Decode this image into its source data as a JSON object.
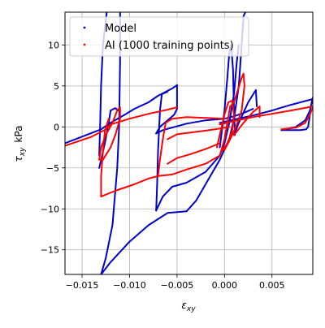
{
  "chart_data": {
    "type": "scatter",
    "title": "",
    "xlabel_main": "ε",
    "xlabel_sub": "xy",
    "ylabel_main": "τ",
    "ylabel_sub": "xy",
    "ylabel_unit": "kPa",
    "xlim": [
      -0.0168,
      0.0093
    ],
    "ylim": [
      -18.0,
      14.0
    ],
    "grid": true,
    "legend_position": "top-left",
    "x_ticks": [
      {
        "value": -0.015,
        "label": "−0.015"
      },
      {
        "value": -0.01,
        "label": "−0.010"
      },
      {
        "value": -0.005,
        "label": "−0.005"
      },
      {
        "value": 0.0,
        "label": "0.000"
      },
      {
        "value": 0.005,
        "label": "0.005"
      }
    ],
    "y_ticks": [
      {
        "value": -15,
        "label": "−15"
      },
      {
        "value": -10,
        "label": "−10"
      },
      {
        "value": -5,
        "label": "−5"
      },
      {
        "value": 0,
        "label": "0"
      },
      {
        "value": 5,
        "label": "5"
      },
      {
        "value": 10,
        "label": "10"
      }
    ],
    "series": [
      {
        "name": "Model",
        "color": "#0000cc",
        "paths": [
          [
            [
              -0.0168,
              -2.0
            ],
            [
              -0.013,
              -0.3
            ],
            [
              -0.012,
              0.5
            ],
            [
              -0.0105,
              1.5
            ],
            [
              -0.0095,
              2.2
            ],
            [
              -0.008,
              3.0
            ],
            [
              -0.007,
              3.8
            ],
            [
              -0.0055,
              4.7
            ],
            [
              -0.005,
              5.1
            ]
          ],
          [
            [
              -0.005,
              5.1
            ],
            [
              -0.005,
              2.2
            ],
            [
              -0.0053,
              1.5
            ],
            [
              -0.006,
              0.8
            ],
            [
              -0.0068,
              0.0
            ],
            [
              -0.0072,
              -0.8
            ]
          ],
          [
            [
              -0.0072,
              -0.8
            ],
            [
              -0.0065,
              -0.4
            ],
            [
              -0.004,
              0.4
            ],
            [
              -0.002,
              0.8
            ],
            [
              0.0,
              1.0
            ],
            [
              0.001,
              1.3
            ],
            [
              0.002,
              1.7
            ],
            [
              0.003,
              2.2
            ]
          ],
          [
            [
              -0.0132,
              -5.0
            ],
            [
              -0.0126,
              -2.0
            ],
            [
              -0.0122,
              0.5
            ],
            [
              -0.012,
              2.0
            ],
            [
              -0.0115,
              2.3
            ],
            [
              -0.0112,
              2.0
            ]
          ],
          [
            [
              -0.0132,
              -3.5
            ],
            [
              -0.0131,
              0.0
            ],
            [
              -0.013,
              5.0
            ],
            [
              -0.0128,
              10.0
            ],
            [
              -0.0124,
              14.0
            ],
            [
              -0.0118,
              15.5
            ],
            [
              -0.0112,
              15.8
            ],
            [
              -0.011,
              14.5
            ],
            [
              -0.011,
              8.0
            ],
            [
              -0.0111,
              0.0
            ],
            [
              -0.0113,
              -5.0
            ],
            [
              -0.0118,
              -12.0
            ],
            [
              -0.0125,
              -16.0
            ],
            [
              -0.013,
              -18.0
            ]
          ],
          [
            [
              -0.013,
              -18.0
            ],
            [
              -0.012,
              -16.5
            ],
            [
              -0.01,
              -14.0
            ],
            [
              -0.008,
              -12.0
            ],
            [
              -0.006,
              -10.5
            ],
            [
              -0.004,
              -10.3
            ],
            [
              -0.003,
              -9.0
            ],
            [
              -0.002,
              -7.0
            ],
            [
              -0.0005,
              -4.0
            ],
            [
              0.0005,
              -1.5
            ],
            [
              0.001,
              1.0
            ],
            [
              0.0015,
              5.0
            ],
            [
              0.0018,
              10.0
            ],
            [
              0.002,
              13.5
            ],
            [
              0.0022,
              14.0
            ]
          ],
          [
            [
              -0.0072,
              -10.2
            ],
            [
              -0.0065,
              -8.5
            ],
            [
              -0.0055,
              -7.3
            ],
            [
              -0.004,
              -6.8
            ],
            [
              -0.002,
              -5.5
            ],
            [
              -0.0005,
              -3.5
            ],
            [
              0.0,
              -2.0
            ],
            [
              0.0005,
              0.5
            ],
            [
              0.001,
              4.0
            ],
            [
              0.0013,
              8.0
            ],
            [
              0.0015,
              10.0
            ]
          ],
          [
            [
              -0.0072,
              -10.2
            ],
            [
              -0.0071,
              -7.0
            ],
            [
              -0.007,
              -3.0
            ],
            [
              -0.0068,
              2.0
            ],
            [
              -0.0066,
              4.0
            ],
            [
              -0.006,
              4.3
            ]
          ],
          [
            [
              -0.0005,
              -2.5
            ],
            [
              0.0,
              2.0
            ],
            [
              0.0003,
              6.0
            ],
            [
              0.0005,
              9.0
            ],
            [
              0.0007,
              10.0
            ],
            [
              0.0009,
              7.0
            ],
            [
              0.001,
              2.0
            ],
            [
              0.0011,
              -1.0
            ]
          ],
          [
            [
              0.001,
              -1.0
            ],
            [
              0.0015,
              0.5
            ],
            [
              0.0025,
              3.0
            ],
            [
              0.0033,
              4.5
            ],
            [
              0.0034,
              2.5
            ]
          ],
          [
            [
              0.006,
              -0.4
            ],
            [
              0.0075,
              0.0
            ],
            [
              0.0085,
              0.8
            ],
            [
              0.009,
              2.0
            ],
            [
              0.0093,
              3.6
            ]
          ],
          [
            [
              -0.0005,
              0.5
            ],
            [
              0.001,
              0.9
            ],
            [
              0.003,
              1.4
            ],
            [
              0.005,
              2.0
            ],
            [
              0.007,
              2.7
            ],
            [
              0.0093,
              3.4
            ]
          ],
          [
            [
              0.009,
              1.5
            ],
            [
              0.0088,
              0.0
            ],
            [
              0.0086,
              -0.3
            ],
            [
              0.008,
              -0.4
            ],
            [
              0.007,
              -0.4
            ],
            [
              0.006,
              -0.4
            ]
          ]
        ]
      },
      {
        "name": "AI (1000 training points)",
        "color": "#ff0000",
        "paths": [
          [
            [
              -0.0168,
              -2.3
            ],
            [
              -0.014,
              -1.2
            ],
            [
              -0.0125,
              -0.3
            ],
            [
              -0.012,
              0.3
            ],
            [
              -0.01,
              1.0
            ],
            [
              -0.008,
              1.6
            ],
            [
              -0.006,
              2.1
            ],
            [
              -0.005,
              2.4
            ]
          ],
          [
            [
              -0.0132,
              -4.0
            ],
            [
              -0.013,
              -2.5
            ],
            [
              -0.0125,
              -1.0
            ],
            [
              -0.0118,
              0.5
            ],
            [
              -0.0113,
              2.0
            ],
            [
              -0.011,
              2.4
            ],
            [
              -0.011,
              1.0
            ],
            [
              -0.0115,
              -1.0
            ],
            [
              -0.012,
              -2.5
            ],
            [
              -0.0128,
              -4.0
            ],
            [
              -0.0132,
              -4.0
            ]
          ],
          [
            [
              -0.013,
              -8.5
            ],
            [
              -0.0115,
              -7.8
            ],
            [
              -0.0095,
              -7.0
            ],
            [
              -0.008,
              -6.3
            ],
            [
              -0.007,
              -6.0
            ],
            [
              -0.0055,
              -5.8
            ],
            [
              -0.004,
              -5.2
            ],
            [
              -0.002,
              -4.5
            ],
            [
              -0.0005,
              -3.5
            ]
          ],
          [
            [
              -0.013,
              -8.5
            ],
            [
              -0.013,
              -6.0
            ],
            [
              -0.0128,
              -3.0
            ],
            [
              -0.0126,
              -0.5
            ],
            [
              -0.0122,
              1.0
            ]
          ],
          [
            [
              -0.007,
              -6.0
            ],
            [
              -0.0068,
              -4.0
            ],
            [
              -0.0065,
              -1.5
            ],
            [
              -0.0062,
              0.5
            ],
            [
              -0.0055,
              1.0
            ],
            [
              -0.004,
              1.2
            ],
            [
              -0.002,
              1.1
            ],
            [
              0.0,
              1.0
            ]
          ],
          [
            [
              -0.006,
              -4.5
            ],
            [
              -0.005,
              -3.8
            ],
            [
              -0.0035,
              -3.3
            ],
            [
              -0.002,
              -2.7
            ],
            [
              -0.0005,
              -2.0
            ]
          ],
          [
            [
              -0.006,
              -1.5
            ],
            [
              -0.005,
              -0.9
            ],
            [
              -0.003,
              -0.6
            ],
            [
              -0.001,
              -0.3
            ],
            [
              0.0005,
              0.0
            ]
          ],
          [
            [
              -0.0005,
              -3.5
            ],
            [
              0.0,
              -1.5
            ],
            [
              0.0003,
              0.5
            ],
            [
              0.0006,
              2.5
            ],
            [
              0.001,
              3.0
            ],
            [
              0.0014,
              4.5
            ],
            [
              0.0018,
              6.0
            ],
            [
              0.002,
              6.5
            ],
            [
              0.0021,
              5.0
            ],
            [
              0.0018,
              2.0
            ],
            [
              0.0012,
              0.0
            ],
            [
              0.0006,
              -1.5
            ],
            [
              0.0,
              -2.8
            ]
          ],
          [
            [
              -0.0008,
              -2.5
            ],
            [
              -0.0004,
              -0.5
            ],
            [
              0.0,
              1.5
            ],
            [
              0.0004,
              3.0
            ],
            [
              0.0008,
              3.2
            ],
            [
              0.001,
              1.5
            ],
            [
              0.0008,
              -0.5
            ],
            [
              0.0003,
              -2.0
            ],
            [
              -0.0003,
              -3.0
            ]
          ],
          [
            [
              0.001,
              -1.0
            ],
            [
              0.002,
              0.5
            ],
            [
              0.003,
              1.8
            ],
            [
              0.0037,
              2.5
            ],
            [
              0.0037,
              1.2
            ]
          ],
          [
            [
              -0.0005,
              0.3
            ],
            [
              0.001,
              0.7
            ],
            [
              0.003,
              1.2
            ],
            [
              0.005,
              1.6
            ],
            [
              0.007,
              2.0
            ],
            [
              0.0093,
              2.5
            ]
          ],
          [
            [
              0.006,
              -0.3
            ],
            [
              0.0075,
              -0.1
            ],
            [
              0.0085,
              0.5
            ],
            [
              0.009,
              1.5
            ],
            [
              0.0093,
              2.4
            ]
          ]
        ]
      }
    ]
  }
}
